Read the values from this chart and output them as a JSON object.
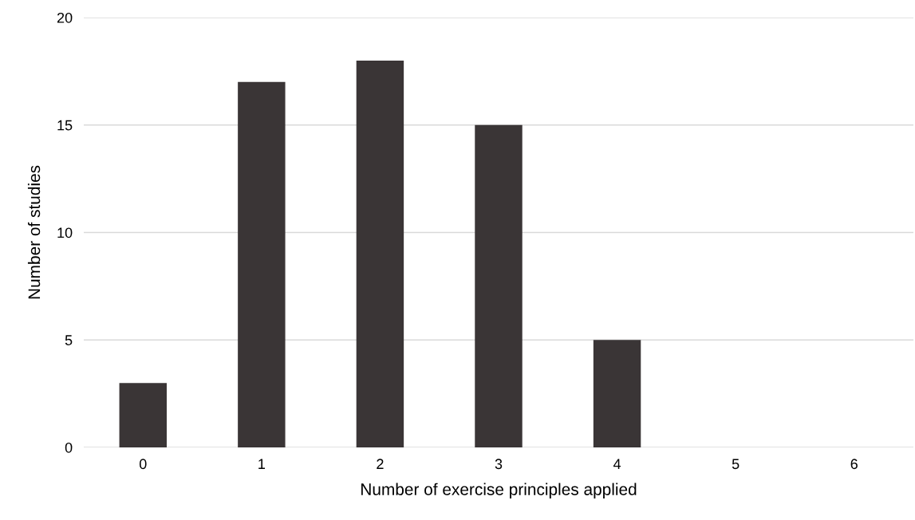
{
  "chart_data": {
    "type": "bar",
    "xlabel": "Number of exercise principles applied",
    "ylabel": "Number of studies",
    "categories": [
      "0",
      "1",
      "2",
      "3",
      "4",
      "5",
      "6"
    ],
    "values": [
      3,
      17,
      18,
      15,
      5,
      0,
      0
    ],
    "color": "#3a3536",
    "ylim": [
      0,
      20
    ],
    "yticks": [
      0,
      5,
      10,
      15,
      20
    ],
    "grid": "y",
    "legend": false
  }
}
